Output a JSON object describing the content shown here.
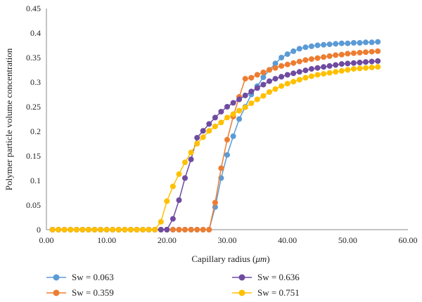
{
  "chart_data": {
    "type": "line",
    "title": "",
    "xlabel": "Capillary radius (",
    "xlabel_unit": "μm",
    "xlabel_close": ")",
    "ylabel": "Polymer particle volume concentration",
    "xlim": [
      0,
      60
    ],
    "ylim": [
      0,
      0.45
    ],
    "xticks": [
      "0.00",
      "10.00",
      "20.00",
      "30.00",
      "40.00",
      "50.00",
      "60.00"
    ],
    "xtick_values": [
      0,
      10,
      20,
      30,
      40,
      50,
      60
    ],
    "yticks": [
      "0",
      "0.05",
      "0.1",
      "0.15",
      "0.2",
      "0.25",
      "0.3",
      "0.35",
      "0.4",
      "0.45"
    ],
    "ytick_values": [
      0,
      0.05,
      0.1,
      0.15,
      0.2,
      0.25,
      0.3,
      0.35,
      0.4,
      0.45
    ],
    "grid": false,
    "legend_position": "bottom",
    "x": [
      1,
      2,
      3,
      4,
      5,
      6,
      7,
      8,
      9,
      10,
      11,
      12,
      13,
      14,
      15,
      16,
      17,
      18,
      19,
      20,
      21,
      22,
      23,
      24,
      25,
      26,
      27,
      28,
      29,
      30,
      31,
      32,
      33,
      34,
      35,
      36,
      37,
      38,
      39,
      40,
      41,
      42,
      43,
      44,
      45,
      46,
      47,
      48,
      49,
      50,
      51,
      52,
      53,
      54,
      55
    ],
    "series": [
      {
        "name": "Sw = 0.063",
        "color": "#5B9BD5",
        "values": [
          0,
          0,
          0,
          0,
          0,
          0,
          0,
          0,
          0,
          0,
          0,
          0,
          0,
          0,
          0,
          0,
          0,
          0,
          0,
          0,
          0,
          0,
          0,
          0,
          0,
          0,
          0,
          0.046,
          0.105,
          0.152,
          0.19,
          0.225,
          0.25,
          0.275,
          0.292,
          0.31,
          0.325,
          0.338,
          0.35,
          0.357,
          0.363,
          0.368,
          0.371,
          0.373,
          0.375,
          0.376,
          0.377,
          0.378,
          0.379,
          0.379,
          0.38,
          0.38,
          0.381,
          0.381,
          0.382
        ]
      },
      {
        "name": "Sw = 0.359",
        "color": "#ED7D31",
        "values": [
          0,
          0,
          0,
          0,
          0,
          0,
          0,
          0,
          0,
          0,
          0,
          0,
          0,
          0,
          0,
          0,
          0,
          0,
          0,
          0,
          0,
          0,
          0,
          0,
          0,
          0,
          0,
          0.055,
          0.125,
          0.183,
          0.23,
          0.27,
          0.307,
          0.309,
          0.315,
          0.32,
          0.325,
          0.329,
          0.333,
          0.336,
          0.339,
          0.342,
          0.345,
          0.347,
          0.349,
          0.351,
          0.353,
          0.355,
          0.356,
          0.358,
          0.359,
          0.36,
          0.361,
          0.362,
          0.363
        ]
      },
      {
        "name": "Sw = 0.636",
        "color": "#6F4BA0",
        "values": [
          0,
          0,
          0,
          0,
          0,
          0,
          0,
          0,
          0,
          0,
          0,
          0,
          0,
          0,
          0,
          0,
          0,
          0,
          0,
          0,
          0.022,
          0.06,
          0.105,
          0.143,
          0.187,
          0.201,
          0.215,
          0.228,
          0.24,
          0.25,
          0.258,
          0.265,
          0.273,
          0.281,
          0.288,
          0.295,
          0.302,
          0.307,
          0.311,
          0.315,
          0.318,
          0.321,
          0.324,
          0.327,
          0.329,
          0.331,
          0.333,
          0.335,
          0.337,
          0.338,
          0.339,
          0.34,
          0.341,
          0.342,
          0.343
        ]
      },
      {
        "name": "Sw = 0.751",
        "color": "#FFC000",
        "values": [
          0,
          0,
          0,
          0,
          0,
          0,
          0,
          0,
          0,
          0,
          0,
          0,
          0,
          0,
          0,
          0,
          0,
          0,
          0.016,
          0.058,
          0.088,
          0.113,
          0.137,
          0.157,
          0.175,
          0.188,
          0.201,
          0.21,
          0.218,
          0.228,
          0.235,
          0.242,
          0.249,
          0.257,
          0.265,
          0.272,
          0.28,
          0.286,
          0.292,
          0.297,
          0.301,
          0.305,
          0.309,
          0.312,
          0.315,
          0.317,
          0.319,
          0.321,
          0.323,
          0.325,
          0.327,
          0.328,
          0.329,
          0.33,
          0.331
        ]
      }
    ]
  }
}
